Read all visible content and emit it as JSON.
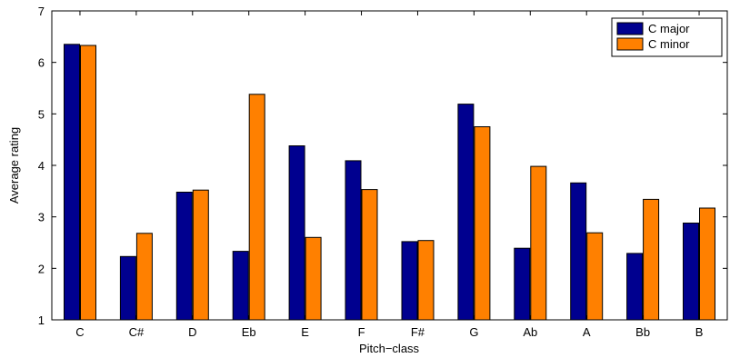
{
  "chart_data": {
    "type": "bar",
    "categories": [
      "C",
      "C#",
      "D",
      "Eb",
      "E",
      "F",
      "F#",
      "G",
      "Ab",
      "A",
      "Bb",
      "B"
    ],
    "series": [
      {
        "name": "C major",
        "color": "#00008f",
        "values": [
          6.35,
          2.23,
          3.48,
          2.33,
          4.38,
          4.09,
          2.52,
          5.19,
          2.39,
          3.66,
          2.29,
          2.88
        ]
      },
      {
        "name": "C minor",
        "color": "#ff8000",
        "values": [
          6.33,
          2.68,
          3.52,
          5.38,
          2.6,
          3.53,
          2.54,
          4.75,
          3.98,
          2.69,
          3.34,
          3.17
        ]
      }
    ],
    "xlabel": "Pitch−class",
    "ylabel": "Average rating",
    "ylim": [
      1,
      7
    ],
    "yticks": [
      "1",
      "2",
      "3",
      "4",
      "5",
      "6",
      "7"
    ],
    "grid": false,
    "legend_position": "top-right"
  }
}
